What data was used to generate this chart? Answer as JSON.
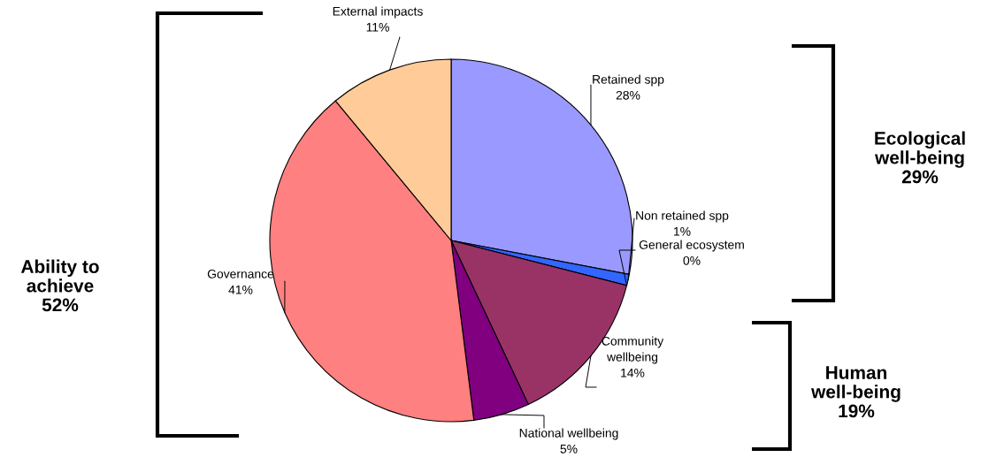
{
  "chart_data": {
    "type": "pie",
    "categories": [
      "Retained spp",
      "Non retained spp",
      "General ecosystem",
      "Community\nwellbeing",
      "National wellbeing",
      "Governance",
      "External impacts"
    ],
    "values": [
      28,
      1,
      0,
      14,
      5,
      41,
      11
    ],
    "value_labels": [
      "28%",
      "1%",
      "0%",
      "14%",
      "5%",
      "41%",
      "11%"
    ],
    "colors": [
      "#9999ff",
      "#3366ff",
      "#00ccff",
      "#993366",
      "#800080",
      "#ff8080",
      "#ffcc99"
    ],
    "annotations": [
      "Ability to\nachieve\n52%",
      "Ecological\nwell-being\n29%",
      "Human\nwell-being\n19%"
    ],
    "legend": false
  }
}
